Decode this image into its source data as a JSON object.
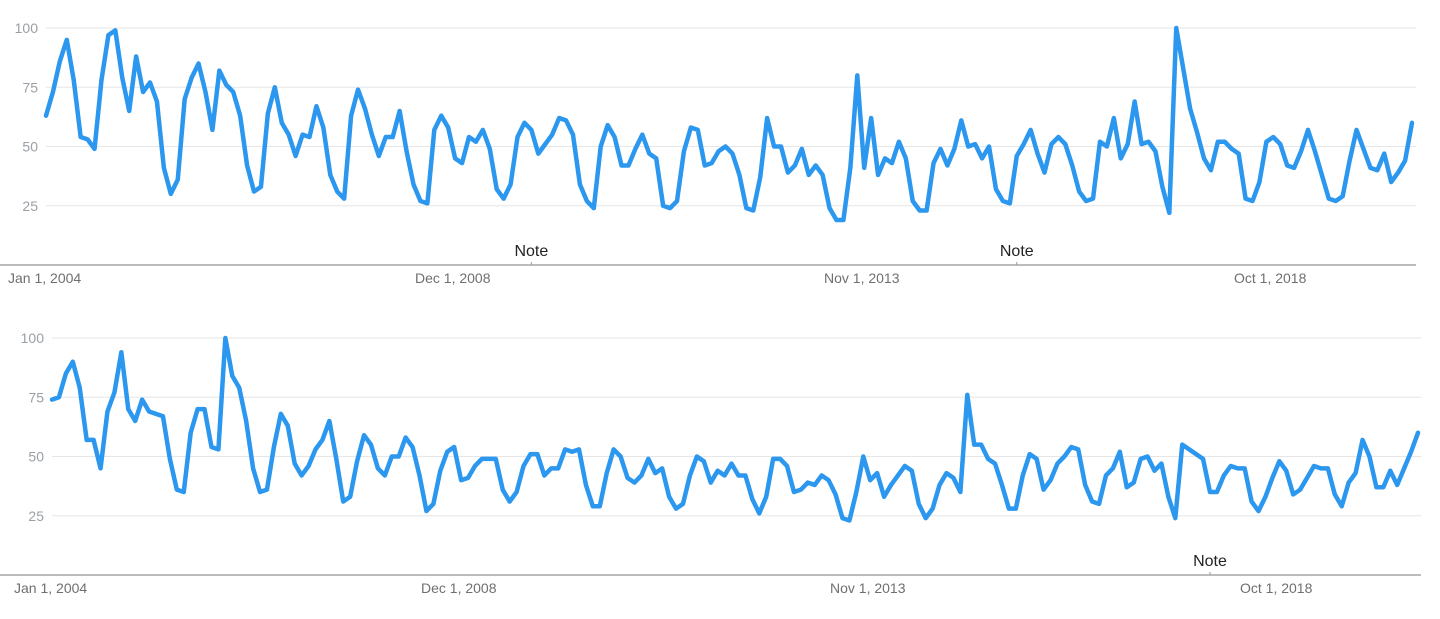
{
  "series_color": "#2b97ee",
  "chart_data": [
    {
      "type": "line",
      "ylim": [
        0,
        100
      ],
      "y_ticks": [
        "25",
        "50",
        "75",
        "100"
      ],
      "x_tick_labels": [
        "Jan 1, 2004",
        "Dec 1, 2008",
        "Nov 1, 2013",
        "Oct 1, 2018"
      ],
      "annotations": [
        {
          "label": "Note",
          "month_index": 70
        },
        {
          "label": "Note",
          "month_index": 140
        }
      ],
      "start": "Jan 2004",
      "values": [
        63,
        73,
        86,
        95,
        78,
        54,
        53,
        49,
        78,
        97,
        99,
        79,
        65,
        88,
        73,
        77,
        69,
        41,
        30,
        36,
        70,
        79,
        85,
        73,
        57,
        82,
        76,
        73,
        63,
        42,
        31,
        33,
        64,
        75,
        60,
        55,
        46,
        55,
        54,
        67,
        58,
        38,
        31,
        28,
        63,
        74,
        66,
        55,
        46,
        54,
        54,
        65,
        48,
        34,
        27,
        26,
        57,
        63,
        58,
        45,
        43,
        54,
        52,
        57,
        49,
        32,
        28,
        34,
        54,
        60,
        57,
        47,
        51,
        55,
        62,
        61,
        55,
        34,
        27,
        24,
        50,
        59,
        54,
        42,
        42,
        49,
        55,
        47,
        45,
        25,
        24,
        27,
        48,
        58,
        57,
        42,
        43,
        48,
        50,
        47,
        38,
        24,
        23,
        37,
        62,
        50,
        50,
        39,
        42,
        49,
        38,
        42,
        38,
        24,
        19,
        19,
        41,
        80,
        41,
        62,
        38,
        45,
        43,
        52,
        45,
        27,
        23,
        23,
        43,
        49,
        42,
        49,
        61,
        50,
        51,
        45,
        50,
        32,
        27,
        26,
        46,
        51,
        57,
        47,
        39,
        51,
        54,
        51,
        42,
        31,
        27,
        28,
        52,
        50,
        62,
        45,
        51,
        69,
        51,
        52,
        48,
        33,
        22,
        100,
        83,
        66,
        56,
        45,
        40,
        52,
        52,
        49,
        47,
        28,
        27,
        35,
        52,
        54,
        51,
        42,
        41,
        48,
        57,
        48,
        38,
        28,
        27,
        29,
        44,
        57,
        49,
        41,
        40,
        47,
        35,
        39,
        44,
        60
      ]
    },
    {
      "type": "line",
      "ylim": [
        0,
        100
      ],
      "y_ticks": [
        "25",
        "50",
        "75",
        "100"
      ],
      "x_tick_labels": [
        "Jan 1, 2004",
        "Dec 1, 2008",
        "Nov 1, 2013",
        "Oct 1, 2018"
      ],
      "annotations": [
        {
          "label": "Note",
          "month_index": 167
        }
      ],
      "start": "Jan 2004",
      "values": [
        74,
        75,
        85,
        90,
        79,
        57,
        57,
        45,
        69,
        77,
        94,
        70,
        65,
        74,
        69,
        68,
        67,
        49,
        36,
        35,
        60,
        70,
        70,
        54,
        53,
        100,
        84,
        79,
        65,
        45,
        35,
        36,
        54,
        68,
        63,
        47,
        42,
        46,
        53,
        57,
        65,
        49,
        31,
        33,
        48,
        59,
        55,
        45,
        42,
        50,
        50,
        58,
        54,
        42,
        27,
        30,
        44,
        52,
        54,
        40,
        41,
        46,
        49,
        49,
        49,
        36,
        31,
        35,
        46,
        51,
        51,
        42,
        45,
        45,
        53,
        52,
        53,
        38,
        29,
        29,
        43,
        53,
        50,
        41,
        39,
        42,
        49,
        43,
        45,
        33,
        28,
        30,
        42,
        50,
        48,
        39,
        44,
        42,
        47,
        42,
        42,
        32,
        26,
        33,
        49,
        49,
        46,
        35,
        36,
        39,
        38,
        42,
        40,
        34,
        24,
        23,
        35,
        50,
        40,
        43,
        33,
        38,
        42,
        46,
        44,
        30,
        24,
        28,
        38,
        43,
        41,
        35,
        76,
        55,
        55,
        49,
        47,
        38,
        28,
        28,
        42,
        51,
        49,
        36,
        40,
        47,
        50,
        54,
        53,
        38,
        31,
        30,
        42,
        45,
        52,
        37,
        39,
        49,
        50,
        44,
        47,
        33,
        24,
        55,
        53,
        51,
        49,
        35,
        35,
        42,
        46,
        45,
        45,
        31,
        27,
        33,
        41,
        48,
        44,
        34,
        36,
        41,
        46,
        45,
        45,
        34,
        29,
        39,
        43,
        57,
        50,
        37,
        37,
        44,
        38,
        45,
        52,
        60
      ]
    }
  ]
}
